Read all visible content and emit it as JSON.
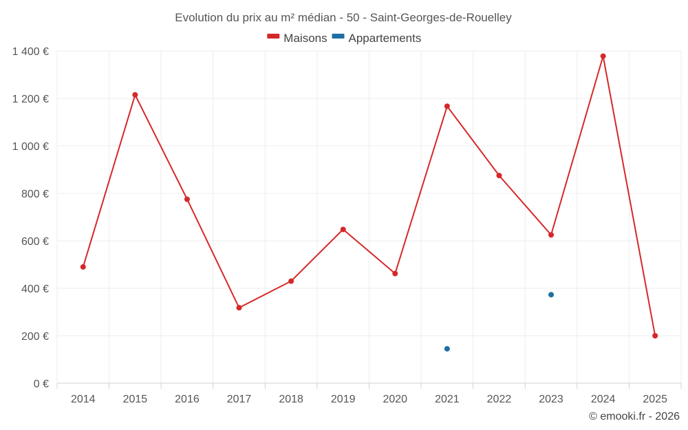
{
  "chart_data": {
    "type": "line",
    "title": "Evolution du prix au m² médian - 50 - Saint-Georges-de-Rouelley",
    "xlabel": "",
    "ylabel": "",
    "categories": [
      "2014",
      "2015",
      "2016",
      "2017",
      "2018",
      "2019",
      "2020",
      "2021",
      "2022",
      "2023",
      "2024",
      "2025"
    ],
    "ylim": [
      0,
      1400
    ],
    "yticks": [
      0,
      200,
      400,
      600,
      800,
      1000,
      1200,
      1400
    ],
    "ytick_labels": [
      "0 €",
      "200 €",
      "400 €",
      "600 €",
      "800 €",
      "1 000 €",
      "1 200 €",
      "1 400 €"
    ],
    "grid": true,
    "legend_position": "top-center",
    "series": [
      {
        "name": "Maisons",
        "color": "#d62728",
        "values": [
          490,
          1215,
          775,
          318,
          430,
          648,
          462,
          1167,
          875,
          625,
          1378,
          200
        ]
      },
      {
        "name": "Appartements",
        "color": "#1f6fa5",
        "values": [
          null,
          null,
          null,
          null,
          null,
          null,
          null,
          145,
          null,
          373,
          null,
          null
        ]
      }
    ]
  },
  "credit": "© emooki.fr - 2026"
}
